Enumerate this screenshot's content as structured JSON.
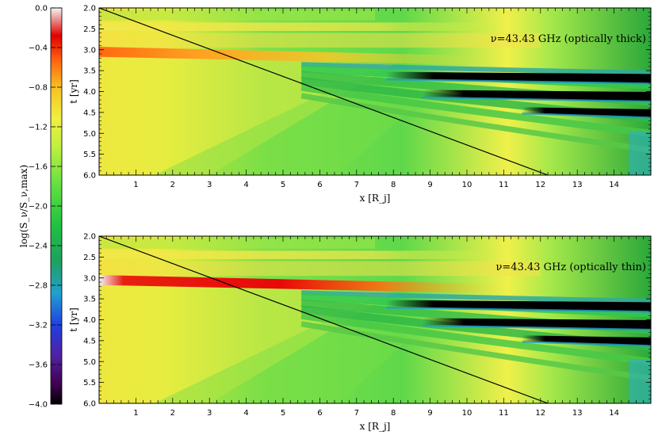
{
  "chart_data": [
    {
      "type": "heatmap",
      "annotation": "ν=43.43 GHz (optically thick)",
      "xlabel": "x [R_j]",
      "ylabel": "t [yr]",
      "xlim": [
        0,
        15
      ],
      "ylim": [
        2.0,
        6.0
      ],
      "y_inverted": true,
      "x_ticks": [
        "1",
        "2",
        "3",
        "4",
        "5",
        "6",
        "7",
        "8",
        "9",
        "10",
        "11",
        "12",
        "13",
        "14"
      ],
      "y_ticks": [
        "2.0",
        "2.5",
        "3.0",
        "3.5",
        "4.0",
        "4.5",
        "5.0",
        "5.5",
        "6.0"
      ],
      "line": {
        "x": [
          0,
          12.2
        ],
        "y": [
          2.0,
          6.0
        ]
      },
      "bands": [
        {
          "name": "flare",
          "t": 3.05,
          "x_end": 8.5,
          "peak": -0.55
        },
        {
          "name": "black1",
          "t": 3.62,
          "x_start": 7.8,
          "x_end": 15,
          "value": -3.9
        },
        {
          "name": "black2",
          "t": 4.05,
          "x_start": 8.8,
          "x_end": 15,
          "value": -3.9
        },
        {
          "name": "black3",
          "t": 4.45,
          "x_start": 11.5,
          "x_end": 15,
          "value": -3.9
        }
      ]
    },
    {
      "type": "heatmap",
      "annotation": "ν=43.43 GHz (optically thin)",
      "xlabel": "x [R_j]",
      "ylabel": "t [yr]",
      "xlim": [
        0,
        15
      ],
      "ylim": [
        2.0,
        6.0
      ],
      "y_inverted": true,
      "x_ticks": [
        "1",
        "2",
        "3",
        "4",
        "5",
        "6",
        "7",
        "8",
        "9",
        "10",
        "11",
        "12",
        "13",
        "14"
      ],
      "y_ticks": [
        "2.0",
        "2.5",
        "3.0",
        "3.5",
        "4.0",
        "4.5",
        "5.0",
        "5.5",
        "6.0"
      ],
      "line": {
        "x": [
          0,
          12.2
        ],
        "y": [
          2.0,
          6.0
        ]
      },
      "bands": [
        {
          "name": "flare",
          "t": 3.05,
          "x_end": 9.0,
          "peak": -0.05
        },
        {
          "name": "black1",
          "t": 3.62,
          "x_start": 7.8,
          "x_end": 15,
          "value": -3.9
        },
        {
          "name": "black2",
          "t": 4.05,
          "x_start": 8.8,
          "x_end": 15,
          "value": -3.9
        },
        {
          "name": "black3",
          "t": 4.45,
          "x_start": 11.5,
          "x_end": 15,
          "value": -3.9
        }
      ]
    }
  ],
  "colorbar": {
    "label": "log(S_ν/S_ν,max)",
    "range": [
      -4.0,
      0.0
    ],
    "ticks": [
      "0.0",
      "−0.4",
      "−0.8",
      "−1.2",
      "−1.6",
      "−2.0",
      "−2.4",
      "−2.8",
      "−3.2",
      "−3.6",
      "−4.0"
    ]
  },
  "colors": {
    "cmap": [
      "#000000",
      "#5b0060",
      "#3b1fa8",
      "#2060d8",
      "#20b0c0",
      "#20b040",
      "#70e040",
      "#c8f040",
      "#f0f040",
      "#f8c020",
      "#ff6010",
      "#e80000",
      "#f0f0f0"
    ],
    "line": "#000000"
  }
}
